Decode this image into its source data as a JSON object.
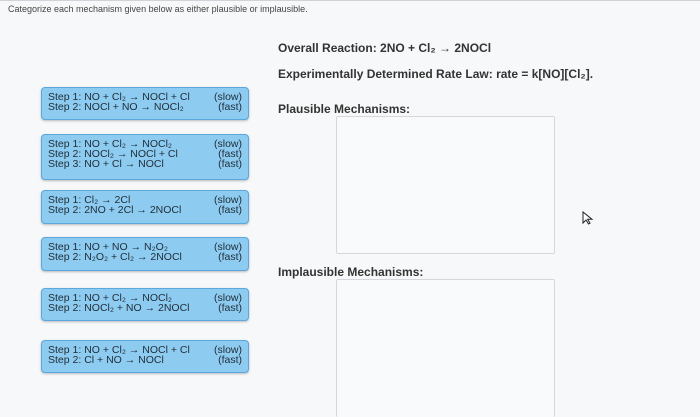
{
  "instruction": "Categorize each mechanism given below as either plausible or implausible.",
  "overall_reaction": "Overall Reaction: 2NO + Cl₂ → 2NOCl",
  "rate_law": "Experimentally Determined Rate Law: rate = k[NO][Cl₂].",
  "plausible_heading": "Plausible Mechanisms:",
  "implausible_heading": "Implausible Mechanisms:",
  "mechanisms": [
    {
      "steps": [
        {
          "text": "Step 1: NO + Cl₂ → NOCl + Cl",
          "rate": "(slow)"
        },
        {
          "text": "Step 2: NOCl + NO → NOCl₂",
          "rate": "(fast)"
        }
      ]
    },
    {
      "steps": [
        {
          "text": "Step 1: NO + Cl₂ → NOCl₂",
          "rate": "(slow)"
        },
        {
          "text": "Step 2: NOCl₂ → NOCl + Cl",
          "rate": "(fast)"
        },
        {
          "text": "Step 3: NO + Cl → NOCl",
          "rate": "(fast)"
        }
      ]
    },
    {
      "steps": [
        {
          "text": "Step 1: Cl₂ → 2Cl",
          "rate": "(slow)"
        },
        {
          "text": "Step 2: 2NO + 2Cl → 2NOCl",
          "rate": "(fast)"
        }
      ]
    },
    {
      "steps": [
        {
          "text": "Step 1: NO + NO → N₂O₂",
          "rate": "(slow)"
        },
        {
          "text": "Step 2: N₂O₂ + Cl₂ → 2NOCl",
          "rate": "(fast)"
        }
      ]
    },
    {
      "steps": [
        {
          "text": "Step 1: NO + Cl₂ → NOCl₂",
          "rate": "(slow)"
        },
        {
          "text": "Step 2: NOCl₂ + NO → 2NOCl",
          "rate": "(fast)"
        }
      ]
    },
    {
      "steps": [
        {
          "text": "Step 1: NO + Cl₂ → NOCl + Cl",
          "rate": "(slow)"
        },
        {
          "text": "Step 2: Cl + NO → NOCl",
          "rate": "(fast)"
        }
      ]
    }
  ],
  "colors": {
    "card_bg": "#8ecbf1",
    "card_border": "#5aa8dc",
    "drop_border": "#d4d8dc"
  }
}
